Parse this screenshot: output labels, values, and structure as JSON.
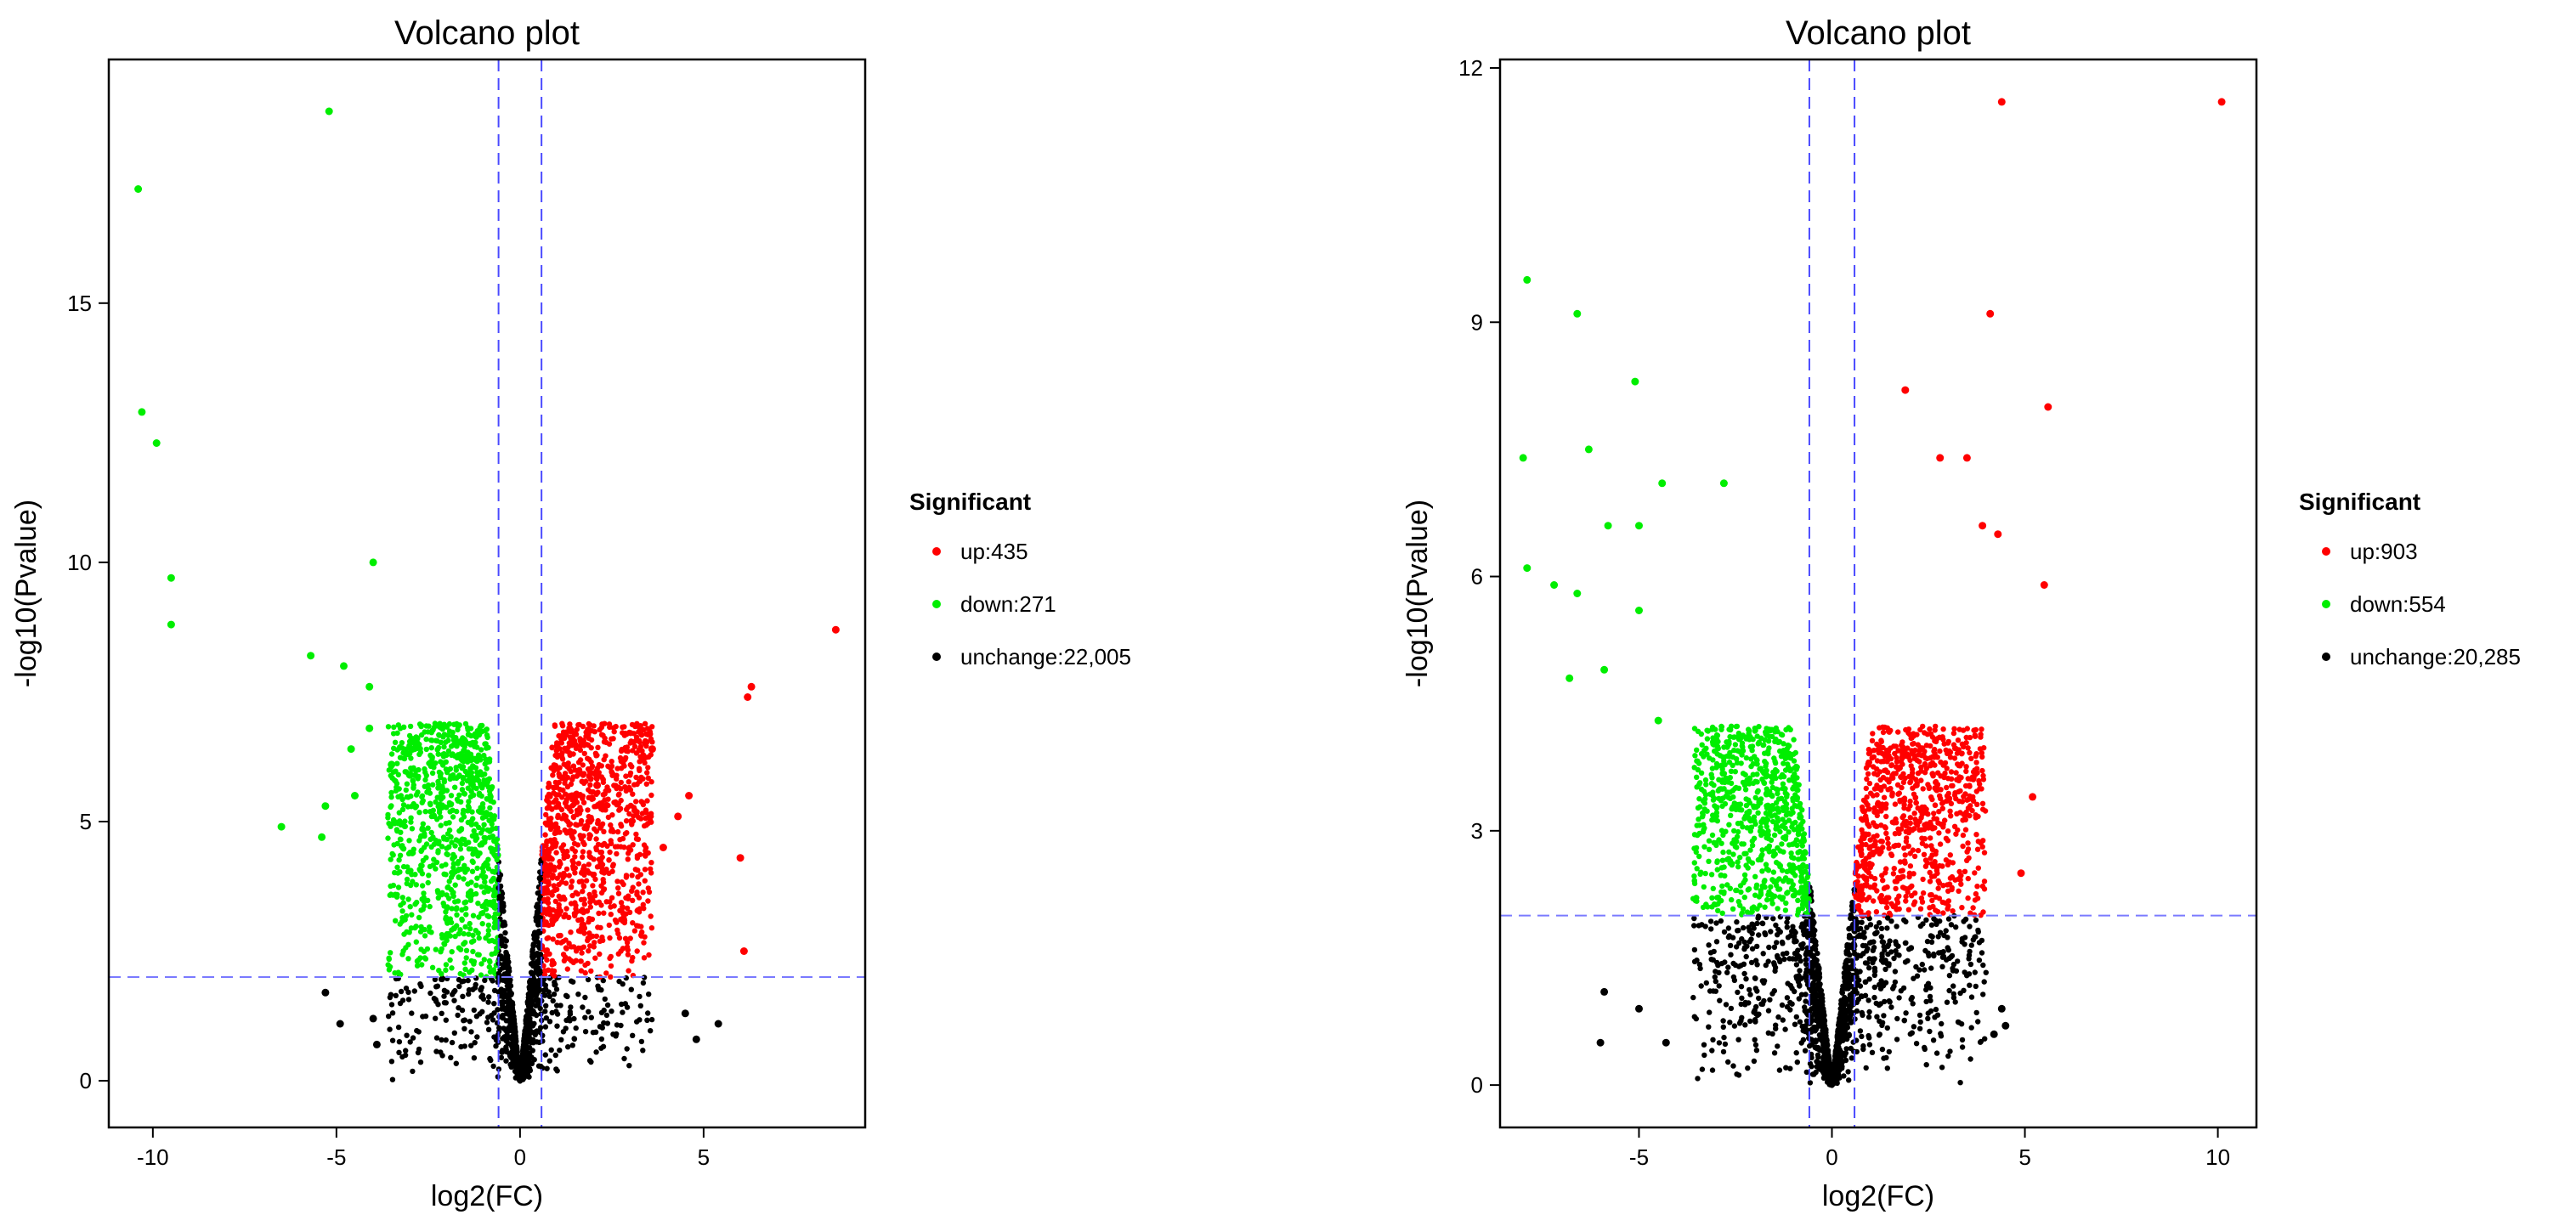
{
  "chart_data": [
    {
      "type": "scatter",
      "title": "Volcano plot",
      "xlabel": "log2(FC)",
      "ylabel": "-log10(Pvalue)",
      "xlim": [
        -11.2,
        9.4
      ],
      "ylim": [
        -0.9,
        19.7
      ],
      "xticks": [
        -10,
        -5,
        0,
        5
      ],
      "yticks": [
        0,
        5,
        10,
        15
      ],
      "fc_threshold": 0.585,
      "p_threshold": 2,
      "legend": {
        "title": "Significant",
        "entries": [
          {
            "label": "up:435",
            "color": "#ff0000"
          },
          {
            "label": "down:271",
            "color": "#00ee00"
          },
          {
            "label": "unchange:22,005",
            "color": "#000000"
          }
        ]
      },
      "counts": {
        "up": 435,
        "down": 271,
        "unchange": 22005
      },
      "highlight_points": {
        "down": [
          [
            -10.4,
            17.2
          ],
          [
            -10.3,
            12.9
          ],
          [
            -9.9,
            12.3
          ],
          [
            -9.5,
            9.7
          ],
          [
            -9.5,
            8.8
          ],
          [
            -5.2,
            18.7
          ],
          [
            -4.0,
            10.0
          ],
          [
            -5.7,
            8.2
          ],
          [
            -4.8,
            8.0
          ],
          [
            -4.1,
            7.6
          ],
          [
            -4.1,
            6.8
          ],
          [
            -6.5,
            4.9
          ],
          [
            -5.3,
            5.3
          ],
          [
            -5.4,
            4.7
          ],
          [
            -4.6,
            6.4
          ],
          [
            -4.5,
            5.5
          ],
          [
            -3.5,
            6.1
          ],
          [
            -3.0,
            5.9
          ]
        ],
        "up": [
          [
            8.6,
            8.7
          ],
          [
            6.3,
            7.6
          ],
          [
            6.2,
            7.4
          ],
          [
            6.0,
            4.3
          ],
          [
            6.1,
            2.5
          ],
          [
            3.6,
            6.4
          ],
          [
            4.6,
            5.5
          ],
          [
            4.3,
            5.1
          ],
          [
            2.1,
            5.7
          ],
          [
            3.9,
            4.5
          ]
        ],
        "unchange": [
          [
            -5.3,
            1.7
          ],
          [
            -4.9,
            1.1
          ],
          [
            -4.0,
            1.2
          ],
          [
            -3.9,
            0.7
          ],
          [
            4.5,
            1.3
          ],
          [
            5.4,
            1.1
          ],
          [
            4.8,
            0.8
          ]
        ]
      },
      "cloud": {
        "down_max_abs": 3.6,
        "up_max_abs": 3.6,
        "spread": 7.5,
        "seed": 11
      }
    },
    {
      "type": "scatter",
      "title": "Volcano plot",
      "xlabel": "log2(FC)",
      "ylabel": "-log10(Pvalue)",
      "xlim": [
        -8.6,
        11.0
      ],
      "ylim": [
        -0.5,
        12.1
      ],
      "xticks": [
        -5,
        0,
        5,
        10
      ],
      "yticks": [
        0,
        3,
        6,
        9,
        12
      ],
      "fc_threshold": 0.585,
      "p_threshold": 2,
      "legend": {
        "title": "Significant",
        "entries": [
          {
            "label": "up:903",
            "color": "#ff0000"
          },
          {
            "label": "down:554",
            "color": "#00ee00"
          },
          {
            "label": "unchange:20,285",
            "color": "#000000"
          }
        ]
      },
      "counts": {
        "up": 903,
        "down": 554,
        "unchange": 20285
      },
      "highlight_points": {
        "down": [
          [
            -7.9,
            9.5
          ],
          [
            -6.6,
            9.1
          ],
          [
            -8.0,
            7.4
          ],
          [
            -6.3,
            7.5
          ],
          [
            -5.1,
            8.3
          ],
          [
            -7.9,
            6.1
          ],
          [
            -7.2,
            5.9
          ],
          [
            -6.6,
            5.8
          ],
          [
            -5.8,
            6.6
          ],
          [
            -5.0,
            6.6
          ],
          [
            -4.4,
            7.1
          ],
          [
            -2.8,
            7.1
          ],
          [
            -6.8,
            4.8
          ],
          [
            -5.9,
            4.9
          ],
          [
            -5.0,
            5.6
          ],
          [
            -4.5,
            4.3
          ]
        ],
        "up": [
          [
            10.1,
            11.6
          ],
          [
            4.4,
            11.6
          ],
          [
            4.1,
            9.1
          ],
          [
            5.6,
            8.0
          ],
          [
            1.9,
            8.2
          ],
          [
            3.5,
            7.4
          ],
          [
            2.8,
            7.4
          ],
          [
            4.3,
            6.5
          ],
          [
            5.5,
            5.9
          ],
          [
            3.9,
            6.6
          ],
          [
            5.2,
            3.4
          ],
          [
            4.9,
            2.5
          ]
        ],
        "unchange": [
          [
            -5.9,
            1.1
          ],
          [
            -5.0,
            0.9
          ],
          [
            -6.0,
            0.5
          ],
          [
            -4.3,
            0.5
          ],
          [
            4.4,
            0.9
          ],
          [
            4.2,
            0.6
          ],
          [
            4.5,
            0.7
          ]
        ]
      },
      "cloud": {
        "down_max_abs": 3.6,
        "up_max_abs": 4.0,
        "spread": 4.2,
        "seed": 29
      }
    }
  ]
}
